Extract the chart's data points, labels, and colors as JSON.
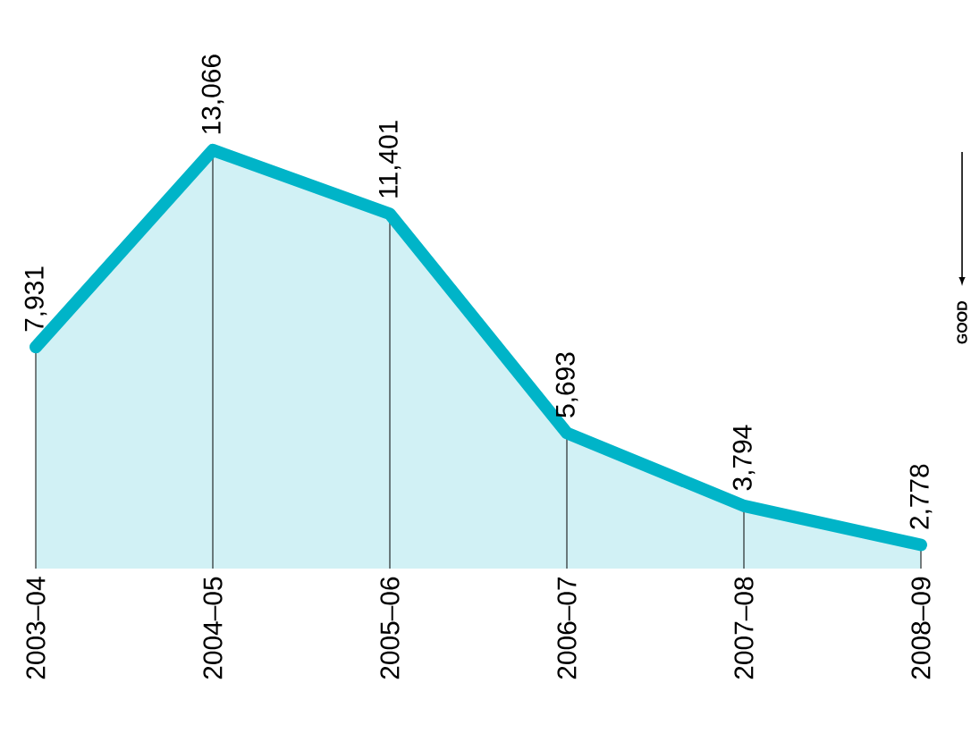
{
  "chart_data": {
    "type": "area",
    "categories": [
      "2003–04",
      "2004–05",
      "2005–06",
      "2006–07",
      "2007–08",
      "2008–09"
    ],
    "values": [
      7931,
      13066,
      11401,
      5693,
      3794,
      2778
    ],
    "value_labels": [
      "7,931",
      "13,066",
      "11,401",
      "5,693",
      "3,794",
      "2,778"
    ],
    "color": "#00b4c8",
    "annotations": [
      "GOOD"
    ]
  }
}
